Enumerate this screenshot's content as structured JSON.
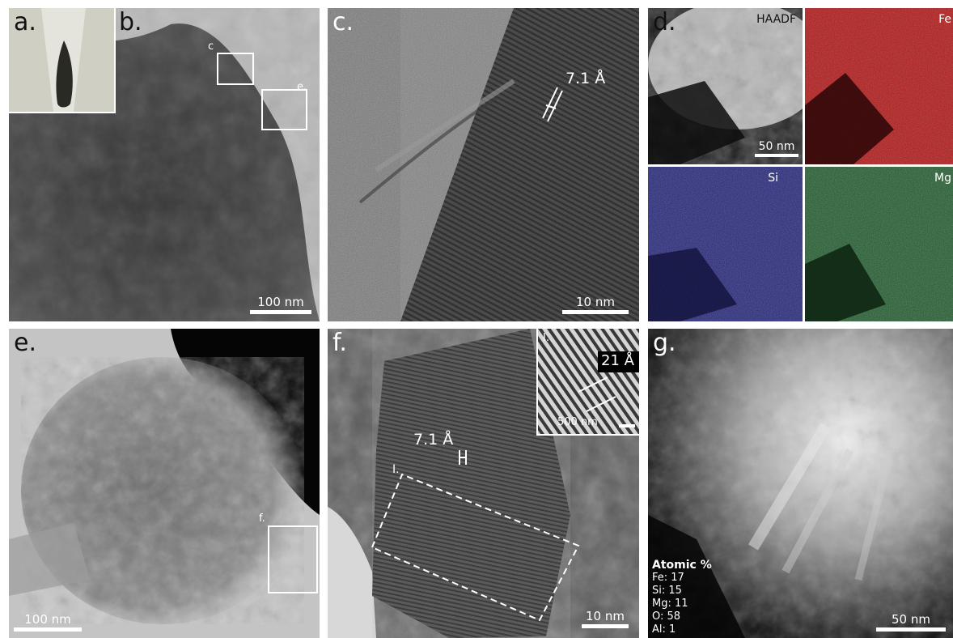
{
  "figure": {
    "panels": {
      "a": {
        "label": "a."
      },
      "b": {
        "label": "b.",
        "roi_c": "c",
        "roi_e": "e.",
        "scale": "100 nm"
      },
      "c": {
        "label": "c.",
        "spacing": "7.1 Å",
        "scale": "10 nm"
      },
      "d": {
        "label": "d.",
        "maps": [
          "HAADF",
          "Fe",
          "Si",
          "Mg"
        ],
        "scale": "50 nm",
        "colors": {
          "Fe": "#b01818",
          "Si": "#27287a",
          "Mg": "#1f5a2c"
        }
      },
      "e": {
        "label": "e.",
        "roi_f": "f.",
        "scale": "100 nm"
      },
      "f": {
        "label": "f.",
        "spacing": "7.1 Å",
        "roi_label": "I.",
        "scale": "10 nm",
        "inset": {
          "label": "I.",
          "spacing": "21 Å",
          "scale": "500 nm"
        }
      },
      "g": {
        "label": "g.",
        "composition_title": "Atomic %",
        "composition": [
          "Fe: 17",
          "Si: 15",
          "Mg: 11",
          "O: 58",
          "Al: 1"
        ],
        "scale": "50 nm"
      }
    }
  }
}
